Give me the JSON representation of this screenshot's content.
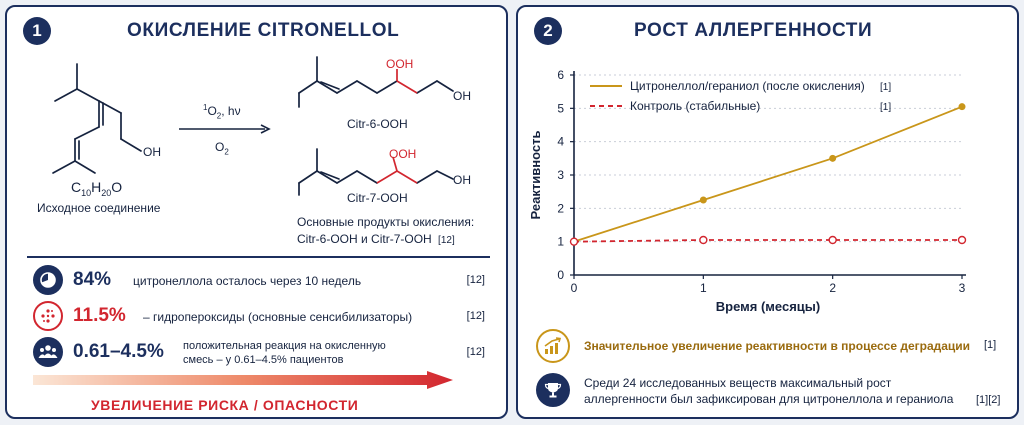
{
  "left_panel": {
    "number": "1",
    "title": "ОКИСЛЕНИЕ CITRONELLOL",
    "start": {
      "oh": "OH",
      "formula": "C10H20O",
      "caption": "Исходное соединение"
    },
    "reaction": {
      "above": "1O2, hν",
      "below": "O2"
    },
    "product1": {
      "ooh": "OOH",
      "oh": "OH",
      "name": "Citr-6-OOH"
    },
    "product2": {
      "ooh": "OOH",
      "oh": "OH",
      "name": "Citr-7-OOH"
    },
    "products_caption_1": "Основные продукты окисления:",
    "products_caption_2": "Citr-6-OOH и Citr-7-OOH",
    "products_ref": "[12]",
    "stats": [
      {
        "icon": "pie-chart-icon",
        "value": "84%",
        "desc": "цитронеллола осталось через 10 недель",
        "ref": "[12]"
      },
      {
        "icon": "molecule-dots-icon",
        "value": "11.5%",
        "desc": "– гидропероксиды (основные сенсибилизаторы)",
        "ref": "[12]"
      },
      {
        "icon": "people-icon",
        "value": "0.61–4.5%",
        "desc": "положительная реакция на окисленную смесь – у 0.61–4.5% пациентов",
        "ref": "[12]"
      }
    ],
    "risk_label": "УВЕЛИЧЕНИЕ РИСКА / ОПАСНОСТИ"
  },
  "right_panel": {
    "number": "2",
    "title": "РОСТ АЛЛЕРГЕННОСТИ",
    "callouts": [
      {
        "icon": "growth-chart-icon",
        "text": "Значительное увеличение реактивности в процессе деградации",
        "ref": "[1]"
      },
      {
        "icon": "trophy-icon",
        "text_1": "Среди 24 исследованных веществ максимальный рост",
        "text_2": "аллергенности был зафиксирован для цитронеллола и гераниола",
        "ref": "[1][2]"
      }
    ]
  },
  "chart_data": {
    "type": "line",
    "xlabel": "Время (месяцы)",
    "ylabel": "Реактивность",
    "xlim": [
      0,
      3
    ],
    "ylim": [
      0,
      6
    ],
    "xticks": [
      0,
      1,
      2,
      3
    ],
    "yticks": [
      0,
      1,
      2,
      3,
      4,
      5,
      6
    ],
    "grid": "horizontal-dotted",
    "legend_position": "top-left",
    "series": [
      {
        "name": "Цитронеллол/гераниол (после окисления)",
        "ref": "[1]",
        "color": "#c9961a",
        "style": "solid",
        "x": [
          0,
          1,
          2,
          3
        ],
        "y": [
          1.0,
          2.25,
          3.5,
          5.05
        ]
      },
      {
        "name": "Контроль (стабильные)",
        "ref": "[1]",
        "color": "#d2262f",
        "style": "dashed",
        "x": [
          0,
          1,
          2,
          3
        ],
        "y": [
          1.0,
          1.05,
          1.05,
          1.05
        ]
      }
    ]
  },
  "colors": {
    "navy": "#1c2f5e",
    "gold": "#c9961a",
    "red": "#d2262f"
  }
}
